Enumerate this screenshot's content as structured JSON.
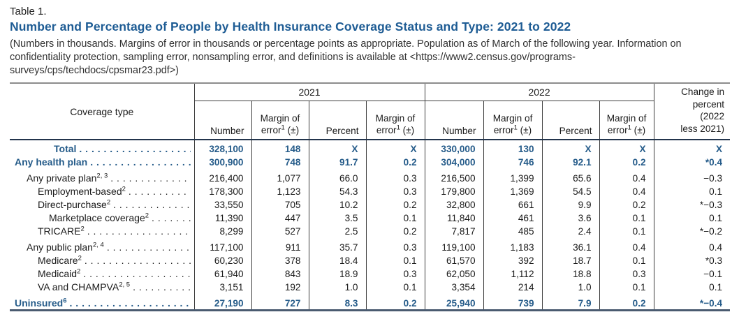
{
  "header": {
    "table_label": "Table 1.",
    "title": "Number and Percentage of People by Health Insurance Coverage Status and Type: 2021 to 2022",
    "subtitle": "(Numbers in thousands. Margins of error in thousands or percentage points as appropriate. Population as of March of the following year. Information on confidentiality protection, sampling error, nonsampling error, and definitions is available at <https://www2.census.gov/programs-surveys/cps/techdocs/cpsmar23.pdf>)"
  },
  "colors": {
    "title_blue": "#1e5c94",
    "data_blue": "#265c8a",
    "rule_gray": "#8c8c8c",
    "rule_dark": "#22344c",
    "rule_bottom": "#4a5b70"
  },
  "table": {
    "coverage_type_header": "Coverage type",
    "years": [
      "2021",
      "2022"
    ],
    "number_header": "Number",
    "percent_header": "Percent",
    "moe_header": {
      "text": "Margin of\nerror",
      "sup": "1",
      "suffix": " (±)"
    },
    "change_header": "Change in\npercent\n(2022\nless 2021)",
    "rows": [
      {
        "label": "Total",
        "sup": "",
        "indent": 4,
        "bold": true,
        "gap_before": false,
        "values": [
          "328,100",
          "148",
          "X",
          "X",
          "330,000",
          "130",
          "X",
          "X",
          "X"
        ]
      },
      {
        "label": "Any health plan",
        "sup": "",
        "indent": 0,
        "bold": true,
        "gap_before": false,
        "values": [
          "300,900",
          "748",
          "91.7",
          "0.2",
          "304,000",
          "746",
          "92.1",
          "0.2",
          "*0.4"
        ]
      },
      {
        "label": "Any private plan",
        "sup": "2, 3",
        "indent": 1,
        "bold": false,
        "gap_before": true,
        "values": [
          "216,400",
          "1,077",
          "66.0",
          "0.3",
          "216,500",
          "1,399",
          "65.6",
          "0.4",
          "−0.3"
        ]
      },
      {
        "label": "Employment-based",
        "sup": "2",
        "indent": 2,
        "bold": false,
        "gap_before": false,
        "values": [
          "178,300",
          "1,123",
          "54.3",
          "0.3",
          "179,800",
          "1,369",
          "54.5",
          "0.4",
          "0.1"
        ]
      },
      {
        "label": "Direct-purchase",
        "sup": "2",
        "indent": 2,
        "bold": false,
        "gap_before": false,
        "values": [
          "33,550",
          "705",
          "10.2",
          "0.2",
          "32,800",
          "661",
          "9.9",
          "0.2",
          "*−0.3"
        ]
      },
      {
        "label": "Marketplace coverage",
        "sup": "2",
        "indent": 3,
        "bold": false,
        "gap_before": false,
        "values": [
          "11,390",
          "447",
          "3.5",
          "0.1",
          "11,840",
          "461",
          "3.6",
          "0.1",
          "0.1"
        ]
      },
      {
        "label": "TRICARE",
        "sup": "2",
        "indent": 2,
        "bold": false,
        "gap_before": false,
        "values": [
          "8,299",
          "527",
          "2.5",
          "0.2",
          "7,817",
          "485",
          "2.4",
          "0.1",
          "*−0.2"
        ]
      },
      {
        "label": "Any public plan",
        "sup": "2, 4",
        "indent": 1,
        "bold": false,
        "gap_before": true,
        "values": [
          "117,100",
          "911",
          "35.7",
          "0.3",
          "119,100",
          "1,183",
          "36.1",
          "0.4",
          "0.4"
        ]
      },
      {
        "label": "Medicare",
        "sup": "2",
        "indent": 2,
        "bold": false,
        "gap_before": false,
        "values": [
          "60,230",
          "378",
          "18.4",
          "0.1",
          "61,570",
          "392",
          "18.7",
          "0.1",
          "*0.3"
        ]
      },
      {
        "label": "Medicaid",
        "sup": "2",
        "indent": 2,
        "bold": false,
        "gap_before": false,
        "values": [
          "61,940",
          "843",
          "18.9",
          "0.3",
          "62,050",
          "1,112",
          "18.8",
          "0.3",
          "−0.1"
        ]
      },
      {
        "label": "VA and CHAMPVA",
        "sup": "2, 5",
        "indent": 2,
        "bold": false,
        "gap_before": false,
        "values": [
          "3,151",
          "192",
          "1.0",
          "0.1",
          "3,354",
          "214",
          "1.0",
          "0.1",
          "0.1"
        ]
      },
      {
        "label": "Uninsured",
        "sup": "6",
        "indent": 0,
        "bold": true,
        "gap_before": true,
        "values": [
          "27,190",
          "727",
          "8.3",
          "0.2",
          "25,940",
          "739",
          "7.9",
          "0.2",
          "*−0.4"
        ]
      }
    ]
  }
}
